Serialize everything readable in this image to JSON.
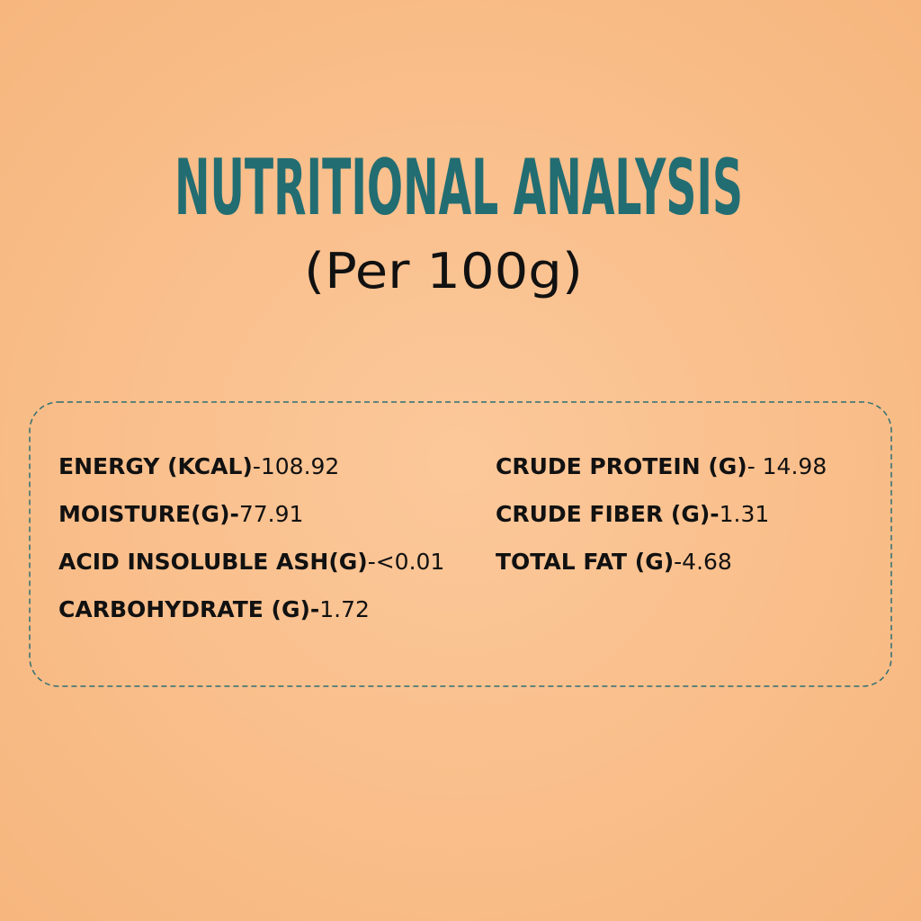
{
  "header": {
    "title": "NUTRITIONAL ANALYSIS",
    "subtitle": "(Per 100g)"
  },
  "nutrients": {
    "left": [
      {
        "label": "ENERGY (KCAL)",
        "value": "-108.92"
      },
      {
        "label": "MOISTURE(G)-",
        "value": "77.91"
      },
      {
        "label": "ACID INSOLUBLE ASH(G)",
        "value": "-<0.01"
      },
      {
        "label": "CARBOHYDRATE (G)-",
        "value": "1.72"
      }
    ],
    "right": [
      {
        "label": "CRUDE PROTEIN (G)",
        "value": "- 14.98"
      },
      {
        "label": "CRUDE FIBER (G)-",
        "value": "1.31"
      },
      {
        "label": "TOTAL FAT (G)",
        "value": "-4.68"
      }
    ]
  }
}
